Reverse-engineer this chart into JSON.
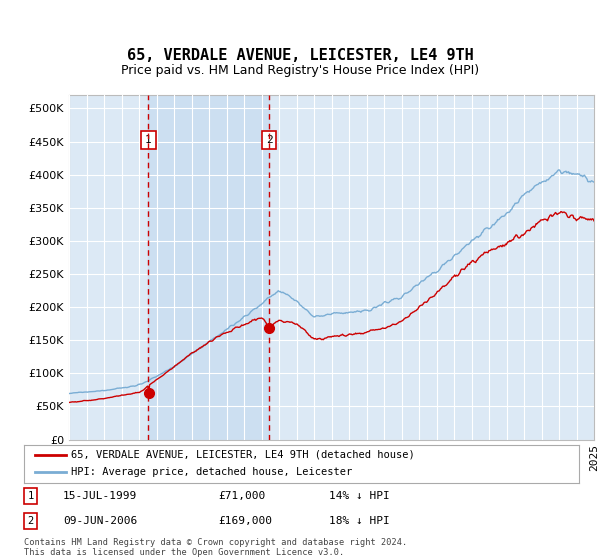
{
  "title": "65, VERDALE AVENUE, LEICESTER, LE4 9TH",
  "subtitle": "Price paid vs. HM Land Registry's House Price Index (HPI)",
  "legend_line1": "65, VERDALE AVENUE, LEICESTER, LE4 9TH (detached house)",
  "legend_line2": "HPI: Average price, detached house, Leicester",
  "annotation1_label": "1",
  "annotation1_date": "15-JUL-1999",
  "annotation1_price": "£71,000",
  "annotation1_hpi": "14% ↓ HPI",
  "annotation2_label": "2",
  "annotation2_date": "09-JUN-2006",
  "annotation2_price": "£169,000",
  "annotation2_hpi": "18% ↓ HPI",
  "footnote": "Contains HM Land Registry data © Crown copyright and database right 2024.\nThis data is licensed under the Open Government Licence v3.0.",
  "sale1_year": 1999.54,
  "sale1_price": 71000,
  "sale2_year": 2006.44,
  "sale2_price": 169000,
  "ylim_max": 520000,
  "ylim_min": 0,
  "background_color": "#ffffff",
  "plot_bg_color": "#dce9f5",
  "shade_color": "#c8ddf0",
  "grid_color": "#ffffff",
  "line_red": "#cc0000",
  "line_blue": "#7aadd4",
  "dashed_color": "#cc0000"
}
